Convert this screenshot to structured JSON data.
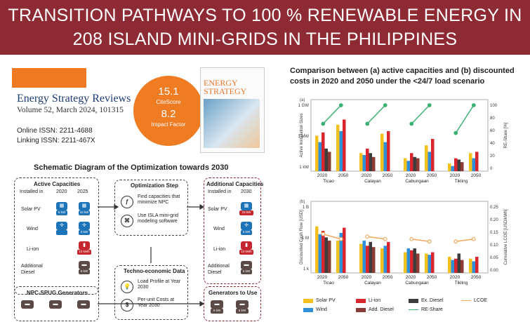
{
  "banner": {
    "line1": "TRANSITION PATHWAYS TO 100 % RENEWABLE ENERGY IN",
    "line2": "208 ISLAND MINI-GRIDS IN THE PHILIPPINES",
    "color": "#8e2a33"
  },
  "journal": {
    "name": "Energy Strategy Reviews",
    "volume": "Volume 52, March 2024, 101315",
    "online_issn": "Online ISSN: 2211-4688",
    "linking_issn": "Linking ISSN: 2211-467X",
    "citescore_value": "15.1",
    "citescore_label": "CiteScore",
    "impact_value": "8.2",
    "impact_label": "Impact Factor",
    "cover_title_1": "ENERGY",
    "cover_title_2": "STRATEGY",
    "accent": "#ef7b22"
  },
  "schematic": {
    "title": "Schematic Diagram of the Optimization towards 2030",
    "active": {
      "title": "Active Capacities",
      "installed_in": "Installed in",
      "y2020": "2020",
      "y2025": "2025",
      "rows": [
        {
          "label": "Solar PV",
          "c2020": "5 kW",
          "c2025": "10 kW"
        },
        {
          "label": "Wind",
          "c2020": "",
          "c2025": "5 kW"
        },
        {
          "label": "Li-ion",
          "c2020": "",
          "c2025": "10 kWh"
        },
        {
          "label": "Additional Diesel",
          "c2020": "",
          "c2025": "5 kW"
        }
      ]
    },
    "npc": {
      "title": "NPC-SPUG Generators"
    },
    "opt": {
      "title": "Optimization Step",
      "item1": "Find capacities that minimize NPC",
      "item2": "Use ISLA mini-grid modeling software"
    },
    "techno": {
      "title": "Techno-economic Data",
      "item1": "Load Profile at Year 2030",
      "item2": "Per-unit Costs at Year 2030"
    },
    "additional": {
      "title": "Additional Capacities",
      "installed_in": "Installed in",
      "y2030": "2030",
      "rows": [
        {
          "label": "Solar PV",
          "cap": "15 kW"
        },
        {
          "label": "Wind",
          "cap": "5 kW"
        },
        {
          "label": "Li-ion",
          "cap": "10 kWh"
        },
        {
          "label": "Additional Diesel",
          "cap": "5 kW"
        }
      ]
    },
    "gen_use": {
      "title": "Generators to Use",
      "caps": [
        "5 kW",
        "5 kW"
      ]
    }
  },
  "comparison": {
    "title_line1": "Comparison between (a) active capacities and (b) discounted",
    "title_line2": "costs in 2020 and 2050 under the <24/7 load scenario"
  },
  "chart_data": [
    {
      "type": "bar",
      "panel": "(a)",
      "ylabel": "Active Installation Sizes",
      "y2label": "RE-Share [%]",
      "yticks": [
        "1 GW",
        "1 MW",
        "1 kW"
      ],
      "y2ticks": [
        "100",
        "80",
        "60",
        "40",
        "20",
        "0"
      ],
      "islands": [
        "Ticao",
        "Calayan",
        "Cabungaan",
        "Tikling"
      ],
      "years": [
        "2020",
        "2050"
      ],
      "series": [
        {
          "name": "Solar PV",
          "values": [
            [
              0.55,
              0.72
            ],
            [
              0.28,
              0.58
            ],
            [
              0.2,
              0.4
            ],
            [
              0.12,
              0.28
            ]
          ]
        },
        {
          "name": "Wind",
          "values": [
            [
              0.45,
              0.62
            ],
            [
              0.25,
              0.45
            ],
            [
              0.16,
              0.3
            ],
            [
              0.08,
              0.2
            ]
          ]
        },
        {
          "name": "Li-ion",
          "values": [
            [
              0.6,
              0.8
            ],
            [
              0.35,
              0.62
            ],
            [
              0.28,
              0.5
            ],
            [
              0.2,
              0.3
            ]
          ]
        },
        {
          "name": "Ex. Diesel",
          "values": [
            [
              0.35,
              0.0
            ],
            [
              0.28,
              0.0
            ],
            [
              0.22,
              0.0
            ],
            [
              0.18,
              0.0
            ]
          ]
        },
        {
          "name": "Add. Diesel",
          "values": [
            [
              0.3,
              0.0
            ],
            [
              0.22,
              0.0
            ],
            [
              0.2,
              0.0
            ],
            [
              0.14,
              0.0
            ]
          ]
        }
      ],
      "re_share": [
        [
          70,
          100
        ],
        [
          70,
          100
        ],
        [
          70,
          100
        ],
        [
          55,
          100
        ]
      ]
    },
    {
      "type": "bar",
      "panel": "(b)",
      "ylabel": "Discounted Cash Flow [USD]",
      "y2label": "Cumulative LCOE [USD/kWh]",
      "yticks": [
        "1 B",
        "1 M",
        "1 k"
      ],
      "y2ticks": [
        "0.25",
        "0.20",
        "0.15",
        "0.10",
        "0.05",
        "0.00"
      ],
      "islands": [
        "Ticao",
        "Calayan",
        "Cabungaan",
        "Tikling"
      ],
      "years": [
        "2020",
        "2050"
      ],
      "series": [
        {
          "name": "Solar PV",
          "values": [
            [
              0.72,
              0.5
            ],
            [
              0.45,
              0.38
            ],
            [
              0.32,
              0.3
            ],
            [
              0.25,
              0.22
            ]
          ]
        },
        {
          "name": "Wind",
          "values": [
            [
              0.6,
              0.62
            ],
            [
              0.5,
              0.42
            ],
            [
              0.38,
              0.28
            ],
            [
              0.2,
              0.18
            ]
          ]
        },
        {
          "name": "Li-ion",
          "values": [
            [
              0.65,
              0.7
            ],
            [
              0.42,
              0.48
            ],
            [
              0.35,
              0.32
            ],
            [
              0.22,
              0.25
            ]
          ]
        },
        {
          "name": "Ex. Diesel",
          "values": [
            [
              0.55,
              0.0
            ],
            [
              0.48,
              0.0
            ],
            [
              0.38,
              0.0
            ],
            [
              0.3,
              0.0
            ]
          ]
        },
        {
          "name": "Add. Diesel",
          "values": [
            [
              0.5,
              0.0
            ],
            [
              0.4,
              0.0
            ],
            [
              0.3,
              0.0
            ],
            [
              0.2,
              0.0
            ]
          ]
        }
      ],
      "lcoe": [
        [
          0.14,
          0.12
        ],
        [
          0.13,
          0.12
        ],
        [
          0.12,
          0.11
        ],
        [
          0.11,
          0.12
        ]
      ]
    }
  ],
  "legend": {
    "items": [
      {
        "name": "Solar PV",
        "color": "#f4c01e",
        "kind": "bar"
      },
      {
        "name": "Wind",
        "color": "#2f8fd8",
        "kind": "bar"
      },
      {
        "name": "Li-ion",
        "color": "#d9262e",
        "kind": "bar"
      },
      {
        "name": "Add. Diesel",
        "color": "#8b3b34",
        "kind": "bar"
      },
      {
        "name": "Ex. Diesel",
        "color": "#3d3d3d",
        "kind": "bar"
      },
      {
        "name": "RE-Share",
        "color": "#3bb273",
        "kind": "line"
      },
      {
        "name": "LCOE",
        "color": "#f0a85c",
        "kind": "line"
      }
    ]
  }
}
